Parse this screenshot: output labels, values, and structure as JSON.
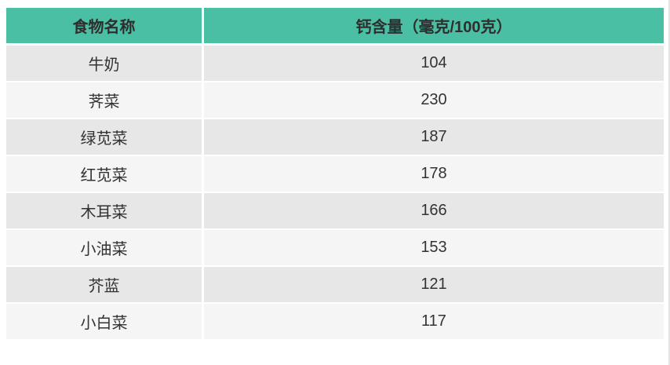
{
  "chart_data": {
    "type": "table",
    "columns": [
      "食物名称",
      "钙含量（毫克/100克）"
    ],
    "rows": [
      [
        "牛奶",
        104
      ],
      [
        "荠菜",
        230
      ],
      [
        "绿苋菜",
        187
      ],
      [
        "红苋菜",
        178
      ],
      [
        "木耳菜",
        166
      ],
      [
        "小油菜",
        153
      ],
      [
        "芥蓝",
        121
      ],
      [
        "小白菜",
        117
      ]
    ],
    "title": "",
    "value_unit": "毫克/100克",
    "legend_position": "none",
    "grid": "off"
  },
  "colors": {
    "header_bg": "#4ABFA4",
    "header_text": "#2E2E2E",
    "row_odd_bg": "#E7E7E7",
    "row_even_bg": "#F5F5F5",
    "cell_text": "#333333"
  }
}
